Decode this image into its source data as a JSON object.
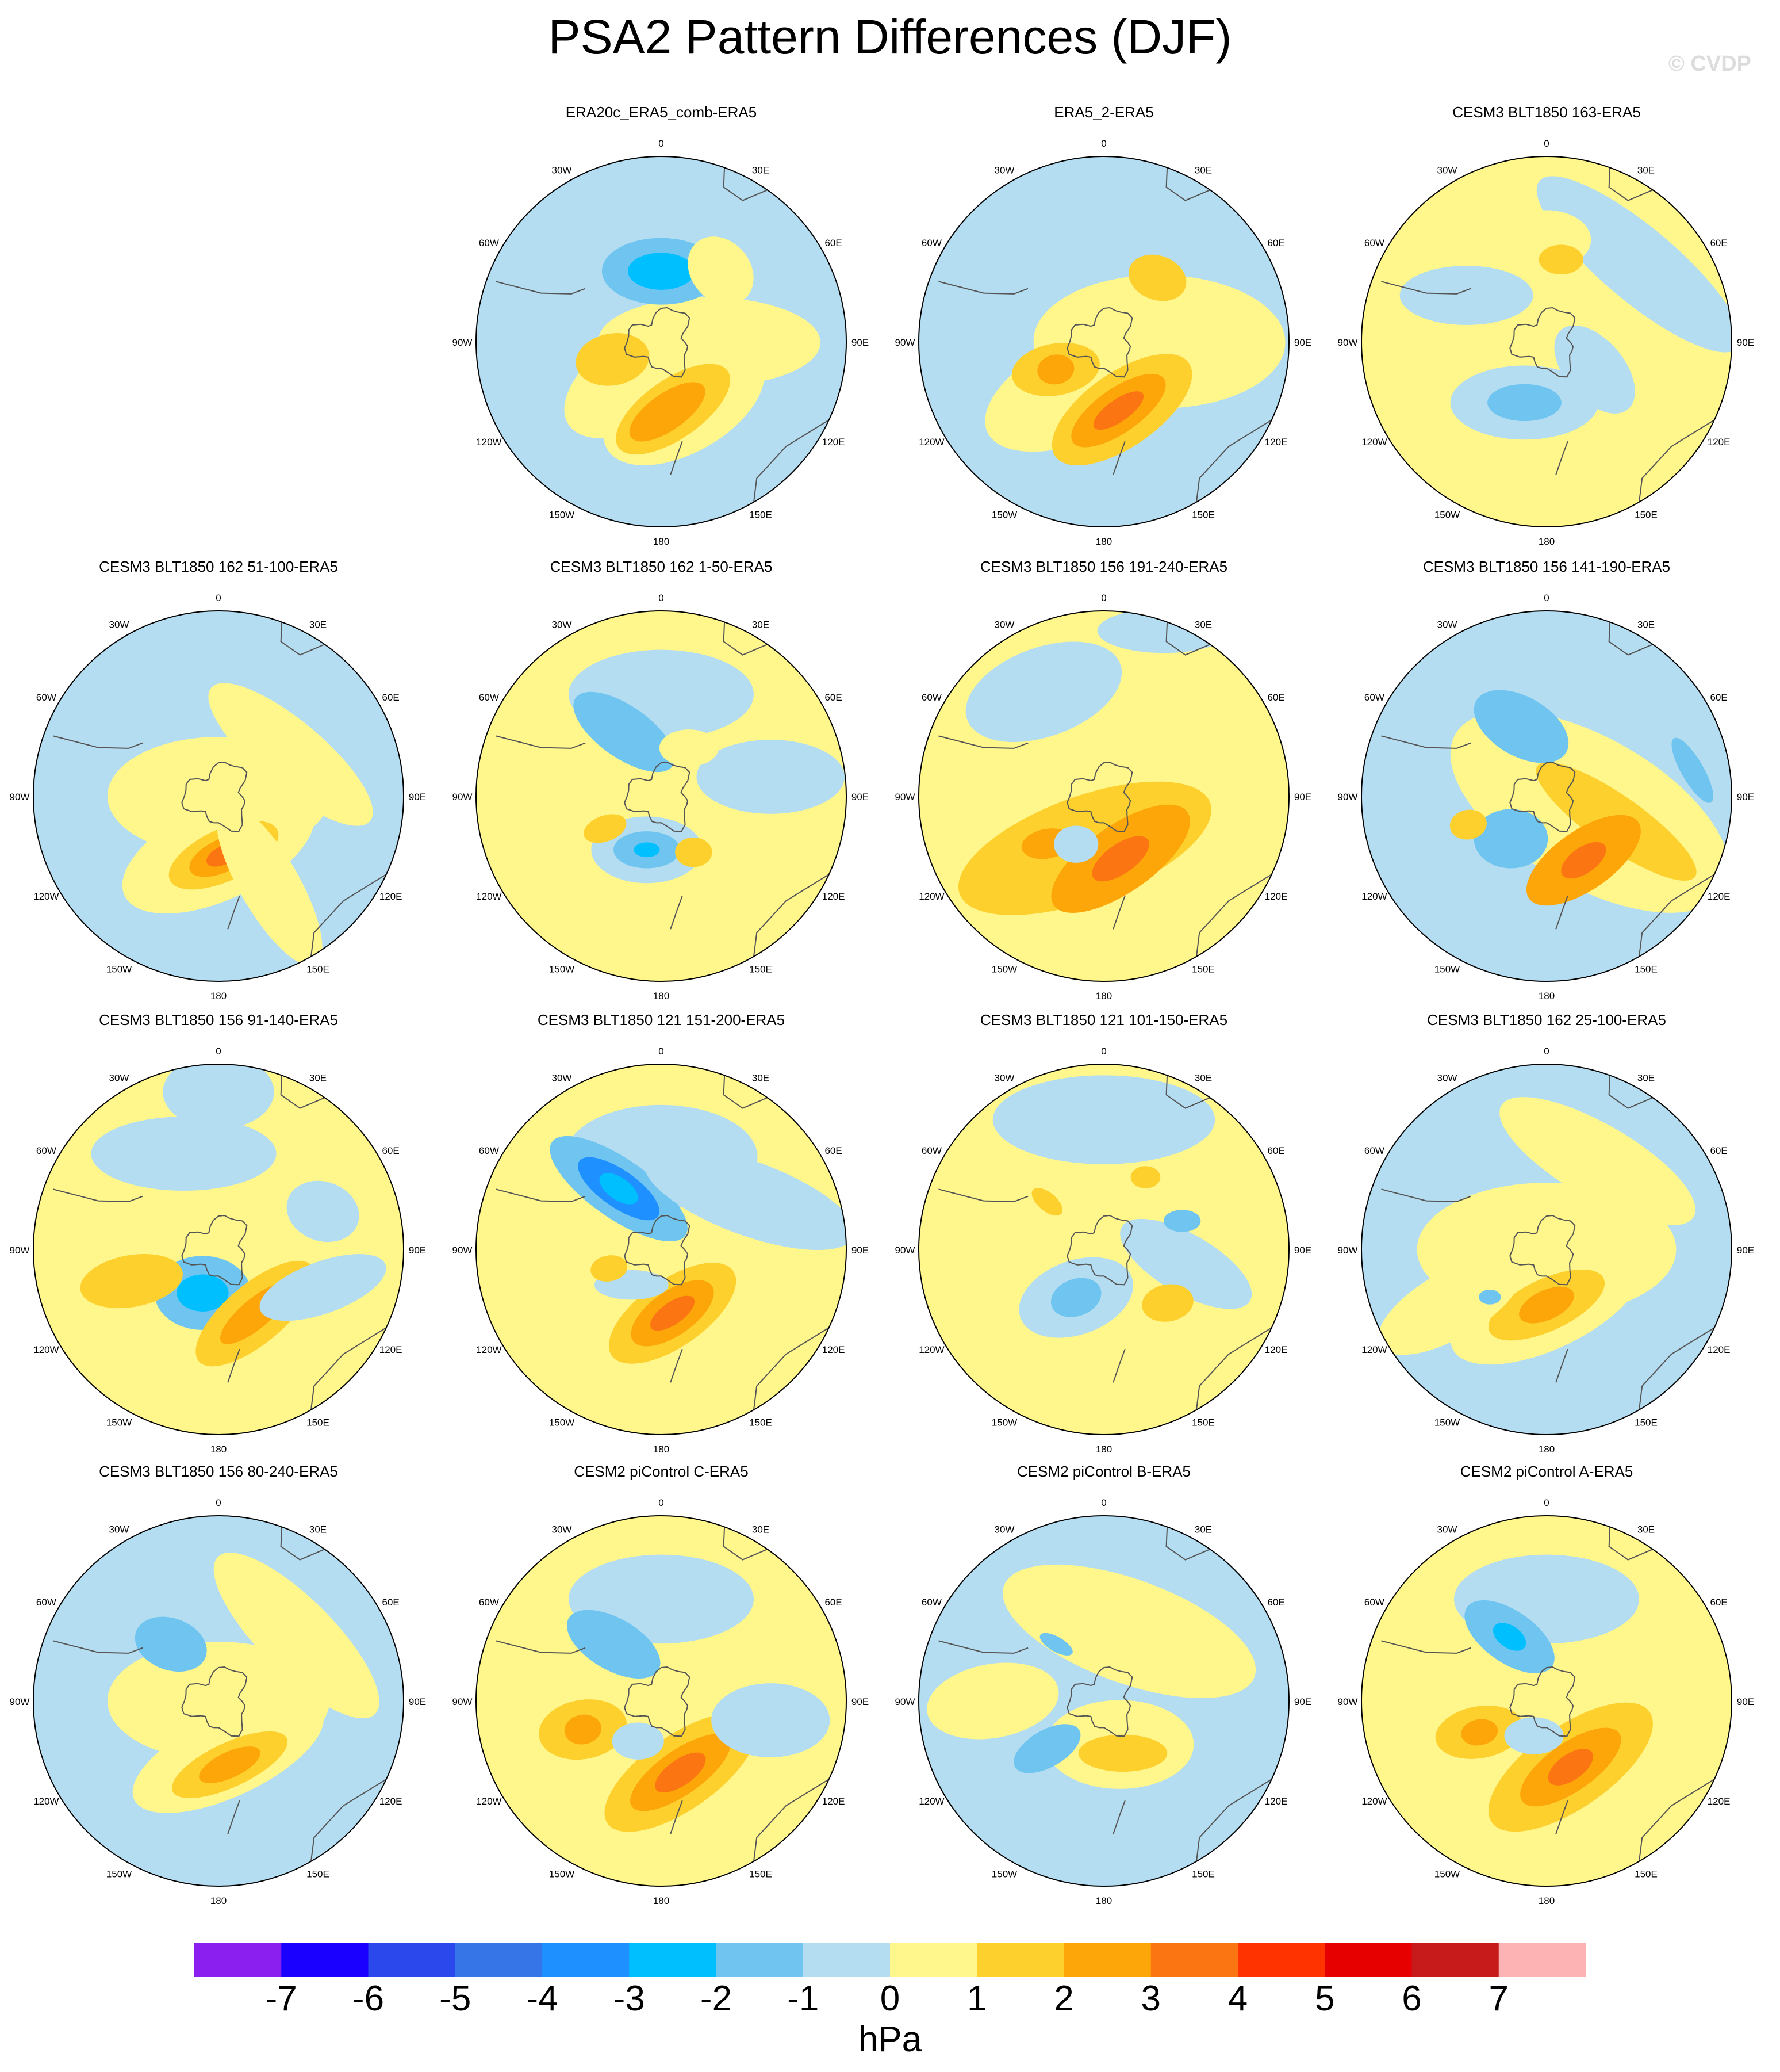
{
  "header": {
    "title": "PSA2 Pattern Differences (DJF)",
    "watermark": "© CVDP"
  },
  "chart_data": {
    "type": "contour-map",
    "projection": "south-polar-stereographic",
    "longitude_labels": [
      "0",
      "30E",
      "60E",
      "90E",
      "120E",
      "150E",
      "180",
      "150W",
      "120W",
      "90W",
      "60W",
      "30W"
    ],
    "colorbar": {
      "units": "hPa",
      "levels": [
        -7,
        -6,
        -5,
        -4,
        -3,
        -2,
        -1,
        0,
        1,
        2,
        3,
        4,
        5,
        6,
        7
      ],
      "level_labels": [
        "-7",
        "-6",
        "-5",
        "-4",
        "-3",
        "-2",
        "-1",
        "0",
        "1",
        "2",
        "3",
        "4",
        "5",
        "6",
        "7"
      ],
      "colors": [
        "#8b1ff0",
        "#1a00ff",
        "#2a48ec",
        "#3575e8",
        "#1e90ff",
        "#00bfff",
        "#6fc5f0",
        "#b4ddf2",
        "#fff68c",
        "#fdd02e",
        "#fca60a",
        "#fb7612",
        "#ff3300",
        "#e60000",
        "#c71a1a",
        "#fdb3b3"
      ]
    },
    "panels": [
      {
        "title": "ERA20c_ERA5_comb-ERA5",
        "bg": "#b4ddf2",
        "blobs": [
          [
            90,
            0.26,
            0.44,
            0.3,
            0.12,
            "#fff68c"
          ],
          [
            0,
            0.38,
            0.3,
            0.16,
            0.09,
            "#6fc5f0"
          ],
          [
            0,
            0.38,
            0.3,
            0.09,
            0.05,
            "#00bfff"
          ],
          [
            200,
            0.18,
            -32,
            0.26,
            0.13,
            "#fff68c"
          ],
          [
            160,
            0.36,
            -30,
            0.24,
            0.13,
            "#fff68c"
          ],
          [
            170,
            0.37,
            -35,
            0.18,
            0.08,
            "#fdd02e"
          ],
          [
            175,
            0.38,
            -35,
            0.12,
            0.05,
            "#fca60a"
          ],
          [
            250,
            0.28,
            -10,
            0.1,
            0.07,
            "#fdd02e"
          ],
          [
            40,
            0.5,
            50,
            0.1,
            0.08,
            "#fff68c"
          ]
        ]
      },
      {
        "title": "ERA5_2-ERA5",
        "bg": "#b4ddf2",
        "blobs": [
          [
            90,
            0.3,
            0.4,
            0.34,
            0.18,
            "#fff68c"
          ],
          [
            200,
            0.25,
            -25,
            0.3,
            0.14,
            "#fff68c"
          ],
          [
            165,
            0.38,
            -35,
            0.22,
            0.1,
            "#fdd02e"
          ],
          [
            168,
            0.38,
            -35,
            0.15,
            0.06,
            "#fca60a"
          ],
          [
            168,
            0.38,
            -35,
            0.08,
            0.03,
            "#fb7612"
          ],
          [
            240,
            0.3,
            -10,
            0.12,
            0.07,
            "#fdd02e"
          ],
          [
            240,
            0.3,
            -10,
            0.05,
            0.04,
            "#fca60a"
          ],
          [
            40,
            0.45,
            20,
            0.08,
            0.06,
            "#fdd02e"
          ]
        ]
      },
      {
        "title": "CESM3 BLT1850 163-ERA5",
        "bg": "#fff68c",
        "blobs": [
          [
            200,
            0.35,
            0,
            0.2,
            0.1,
            "#b4ddf2"
          ],
          [
            200,
            0.35,
            0,
            0.1,
            0.05,
            "#6fc5f0"
          ],
          [
            300,
            0.5,
            0,
            0.18,
            0.08,
            "#b4ddf2"
          ],
          [
            50,
            0.65,
            40,
            0.35,
            0.1,
            "#b4ddf2"
          ],
          [
            0,
            0.55,
            0,
            0.12,
            0.08,
            "#fff68c"
          ],
          [
            120,
            0.3,
            50,
            0.14,
            0.08,
            "#b4ddf2"
          ],
          [
            10,
            0.45,
            0,
            0.06,
            0.04,
            "#fdd02e"
          ]
        ]
      },
      {
        "title": "CESM3 BLT1850 162 51-100-ERA5",
        "bg": "#b4ddf2",
        "blobs": [
          [
            0,
            0.0,
            0.0,
            0.3,
            0.16,
            "#fff68c"
          ],
          [
            180,
            0.3,
            -25,
            0.28,
            0.13,
            "#fff68c"
          ],
          [
            175,
            0.32,
            -25,
            0.16,
            0.07,
            "#fdd02e"
          ],
          [
            175,
            0.32,
            -25,
            0.1,
            0.045,
            "#fca60a"
          ],
          [
            175,
            0.32,
            -25,
            0.05,
            0.025,
            "#fb7612"
          ],
          [
            60,
            0.45,
            40,
            0.28,
            0.09,
            "#fff68c"
          ],
          [
            150,
            0.55,
            60,
            0.25,
            0.08,
            "#fff68c"
          ]
        ]
      },
      {
        "title": "CESM3 BLT1850 162 1-50-ERA5",
        "bg": "#fff68c",
        "blobs": [
          [
            0,
            0.55,
            0,
            0.25,
            0.12,
            "#b4ddf2"
          ],
          [
            330,
            0.4,
            35,
            0.16,
            0.07,
            "#6fc5f0"
          ],
          [
            195,
            0.3,
            0,
            0.15,
            0.09,
            "#b4ddf2"
          ],
          [
            195,
            0.3,
            0,
            0.09,
            0.05,
            "#6fc5f0"
          ],
          [
            195,
            0.3,
            0,
            0.035,
            0.02,
            "#00bfff"
          ],
          [
            80,
            0.6,
            0,
            0.2,
            0.1,
            "#b4ddf2"
          ],
          [
            240,
            0.35,
            -20,
            0.06,
            0.035,
            "#fdd02e"
          ],
          [
            150,
            0.35,
            0,
            0.05,
            0.04,
            "#fdd02e"
          ],
          [
            30,
            0.3,
            0,
            0.08,
            0.05,
            "#fff68c"
          ]
        ]
      },
      {
        "title": "CESM3 BLT1850 156 191-240-ERA5",
        "bg": "#fff68c",
        "blobs": [
          [
            330,
            0.65,
            -20,
            0.22,
            0.12,
            "#b4ddf2"
          ],
          [
            20,
            0.95,
            0,
            0.18,
            0.06,
            "#b4ddf2"
          ],
          [
            200,
            0.3,
            -20,
            0.36,
            0.14,
            "#fdd02e"
          ],
          [
            165,
            0.35,
            -35,
            0.22,
            0.09,
            "#fca60a"
          ],
          [
            165,
            0.35,
            -35,
            0.09,
            0.04,
            "#fb7612"
          ],
          [
            230,
            0.4,
            -10,
            0.07,
            0.04,
            "#fca60a"
          ],
          [
            210,
            0.3,
            0,
            0.06,
            0.05,
            "#b4ddf2"
          ]
        ]
      },
      {
        "title": "CESM3 BLT1850 156 141-190-ERA5",
        "bg": "#b4ddf2",
        "blobs": [
          [
            110,
            0.25,
            30,
            0.42,
            0.2,
            "#fff68c"
          ],
          [
            110,
            0.4,
            35,
            0.26,
            0.07,
            "#fdd02e"
          ],
          [
            150,
            0.4,
            -35,
            0.18,
            0.08,
            "#fca60a"
          ],
          [
            150,
            0.4,
            -35,
            0.07,
            0.035,
            "#fb7612"
          ],
          [
            340,
            0.4,
            30,
            0.14,
            0.08,
            "#6fc5f0"
          ],
          [
            220,
            0.3,
            0,
            0.1,
            0.08,
            "#6fc5f0"
          ],
          [
            80,
            0.8,
            60,
            0.1,
            0.03,
            "#6fc5f0"
          ],
          [
            250,
            0.45,
            -10,
            0.05,
            0.04,
            "#fdd02e"
          ]
        ]
      },
      {
        "title": "CESM3 BLT1850 156 91-140-ERA5",
        "bg": "#fff68c",
        "blobs": [
          [
            340,
            0.55,
            0,
            0.25,
            0.1,
            "#b4ddf2"
          ],
          [
            0,
            0.85,
            0,
            0.15,
            0.1,
            "#b4ddf2"
          ],
          [
            200,
            0.25,
            0,
            0.13,
            0.1,
            "#6fc5f0"
          ],
          [
            200,
            0.25,
            0,
            0.07,
            0.05,
            "#00bfff"
          ],
          [
            150,
            0.4,
            -40,
            0.2,
            0.08,
            "#fdd02e"
          ],
          [
            150,
            0.4,
            -40,
            0.12,
            0.04,
            "#fca60a"
          ],
          [
            250,
            0.5,
            -10,
            0.14,
            0.07,
            "#fdd02e"
          ],
          [
            70,
            0.6,
            20,
            0.1,
            0.08,
            "#b4ddf2"
          ],
          [
            110,
            0.6,
            -20,
            0.18,
            0.07,
            "#b4ddf2"
          ]
        ]
      },
      {
        "title": "CESM3 BLT1850 121 151-200-ERA5",
        "bg": "#fff68c",
        "blobs": [
          [
            0,
            0.5,
            0,
            0.26,
            0.14,
            "#b4ddf2"
          ],
          [
            325,
            0.4,
            35,
            0.22,
            0.08,
            "#6fc5f0"
          ],
          [
            325,
            0.4,
            35,
            0.13,
            0.05,
            "#1e90ff"
          ],
          [
            325,
            0.4,
            35,
            0.06,
            0.03,
            "#00bfff"
          ],
          [
            60,
            0.55,
            20,
            0.3,
            0.1,
            "#b4ddf2"
          ],
          [
            170,
            0.35,
            -35,
            0.2,
            0.09,
            "#fdd02e"
          ],
          [
            170,
            0.35,
            -35,
            0.13,
            0.06,
            "#fca60a"
          ],
          [
            170,
            0.35,
            -35,
            0.07,
            0.03,
            "#fb7612"
          ],
          [
            220,
            0.25,
            0,
            0.1,
            0.04,
            "#b4ddf2"
          ],
          [
            250,
            0.3,
            -10,
            0.05,
            0.035,
            "#fdd02e"
          ]
        ]
      },
      {
        "title": "CESM3 BLT1850 121 101-150-ERA5",
        "bg": "#fff68c",
        "blobs": [
          [
            0,
            0.7,
            0,
            0.3,
            0.12,
            "#b4ddf2"
          ],
          [
            210,
            0.3,
            -20,
            0.16,
            0.1,
            "#b4ddf2"
          ],
          [
            210,
            0.3,
            -20,
            0.07,
            0.05,
            "#6fc5f0"
          ],
          [
            100,
            0.45,
            30,
            0.2,
            0.08,
            "#b4ddf2"
          ],
          [
            70,
            0.45,
            0,
            0.05,
            0.03,
            "#6fc5f0"
          ],
          [
            130,
            0.45,
            -10,
            0.07,
            0.05,
            "#fdd02e"
          ],
          [
            310,
            0.4,
            40,
            0.05,
            0.025,
            "#fdd02e"
          ],
          [
            30,
            0.45,
            0,
            0.04,
            0.03,
            "#fdd02e"
          ]
        ]
      },
      {
        "title": "CESM3 BLT1850 162 25-100-ERA5",
        "bg": "#b4ddf2",
        "blobs": [
          [
            0,
            0.0,
            0.0,
            0.35,
            0.18,
            "#fff68c"
          ],
          [
            30,
            0.55,
            30,
            0.3,
            0.1,
            "#fff68c"
          ],
          [
            180,
            0.3,
            -25,
            0.28,
            0.12,
            "#fff68c"
          ],
          [
            180,
            0.3,
            -25,
            0.17,
            0.07,
            "#fdd02e"
          ],
          [
            180,
            0.3,
            -25,
            0.08,
            0.04,
            "#fca60a"
          ],
          [
            240,
            0.6,
            -30,
            0.22,
            0.09,
            "#fff68c"
          ],
          [
            230,
            0.4,
            0,
            0.03,
            0.02,
            "#6fc5f0"
          ]
        ]
      },
      {
        "title": "CESM3 BLT1850 156 80-240-ERA5",
        "bg": "#b4ddf2",
        "blobs": [
          [
            0,
            0.0,
            0.0,
            0.3,
            0.16,
            "#fff68c"
          ],
          [
            50,
            0.55,
            45,
            0.3,
            0.1,
            "#fff68c"
          ],
          [
            170,
            0.3,
            -25,
            0.28,
            0.11,
            "#fff68c"
          ],
          [
            170,
            0.35,
            -25,
            0.17,
            0.06,
            "#fdd02e"
          ],
          [
            170,
            0.35,
            -25,
            0.09,
            0.035,
            "#fca60a"
          ],
          [
            320,
            0.4,
            20,
            0.1,
            0.07,
            "#6fc5f0"
          ]
        ]
      },
      {
        "title": "CESM2 piControl C-ERA5",
        "bg": "#fff68c",
        "blobs": [
          [
            0,
            0.55,
            0,
            0.25,
            0.12,
            "#b4ddf2"
          ],
          [
            320,
            0.4,
            30,
            0.14,
            0.07,
            "#6fc5f0"
          ],
          [
            165,
            0.4,
            -35,
            0.24,
            0.1,
            "#fdd02e"
          ],
          [
            165,
            0.4,
            -35,
            0.16,
            0.06,
            "#fca60a"
          ],
          [
            165,
            0.4,
            -35,
            0.08,
            0.035,
            "#fb7612"
          ],
          [
            250,
            0.45,
            -10,
            0.12,
            0.08,
            "#fdd02e"
          ],
          [
            250,
            0.45,
            -10,
            0.05,
            0.04,
            "#fca60a"
          ],
          [
            100,
            0.6,
            0,
            0.16,
            0.1,
            "#b4ddf2"
          ],
          [
            210,
            0.25,
            0,
            0.07,
            0.05,
            "#b4ddf2"
          ]
        ]
      },
      {
        "title": "CESM2 piControl B-ERA5",
        "bg": "#b4ddf2",
        "blobs": [
          [
            20,
            0.4,
            20,
            0.36,
            0.14,
            "#fff68c"
          ],
          [
            160,
            0.25,
            0,
            0.2,
            0.12,
            "#fff68c"
          ],
          [
            160,
            0.3,
            0,
            0.12,
            0.05,
            "#fdd02e"
          ],
          [
            230,
            0.4,
            -30,
            0.1,
            0.05,
            "#6fc5f0"
          ],
          [
            270,
            0.6,
            -10,
            0.18,
            0.1,
            "#fff68c"
          ],
          [
            320,
            0.4,
            30,
            0.05,
            0.02,
            "#6fc5f0"
          ]
        ]
      },
      {
        "title": "CESM2 piControl A-ERA5",
        "bg": "#fff68c",
        "blobs": [
          [
            0,
            0.55,
            0,
            0.25,
            0.12,
            "#b4ddf2"
          ],
          [
            330,
            0.4,
            35,
            0.14,
            0.07,
            "#6fc5f0"
          ],
          [
            330,
            0.4,
            35,
            0.05,
            0.03,
            "#00bfff"
          ],
          [
            160,
            0.38,
            -35,
            0.26,
            0.11,
            "#fdd02e"
          ],
          [
            160,
            0.38,
            -35,
            0.16,
            0.065,
            "#fca60a"
          ],
          [
            160,
            0.38,
            -35,
            0.07,
            0.035,
            "#fb7612"
          ],
          [
            245,
            0.4,
            -10,
            0.12,
            0.07,
            "#fdd02e"
          ],
          [
            245,
            0.4,
            -10,
            0.05,
            0.035,
            "#fca60a"
          ],
          [
            200,
            0.2,
            0,
            0.08,
            0.05,
            "#b4ddf2"
          ]
        ]
      }
    ]
  }
}
